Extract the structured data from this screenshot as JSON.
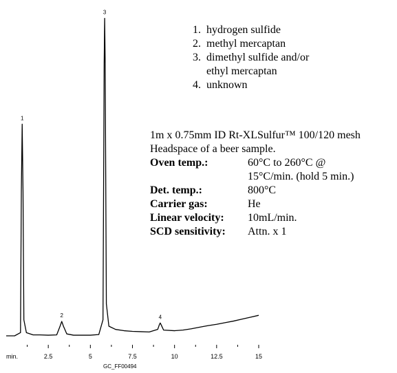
{
  "chart_data": {
    "type": "line",
    "title": "",
    "xlabel": "min.",
    "ylabel": "",
    "xlim": [
      0,
      15
    ],
    "x_ticks": [
      2.5,
      5,
      7.5,
      10,
      12.5,
      15
    ],
    "x_tick_labels": [
      "2.5",
      "5",
      "7.5",
      "10",
      "12.5",
      "15"
    ],
    "grid": false,
    "peaks": [
      {
        "label": "1",
        "x": 0.95,
        "height": 0.66
      },
      {
        "label": "2",
        "x": 3.3,
        "height": 0.045
      },
      {
        "label": "3",
        "x": 5.85,
        "height": 0.99
      },
      {
        "label": "4",
        "x": 9.15,
        "height": 0.04
      }
    ],
    "series": [
      {
        "x": [
          0.0,
          0.5,
          0.85,
          0.9,
          0.95,
          1.0,
          1.05,
          1.2,
          1.6,
          2.0,
          2.5,
          3.0,
          3.2,
          3.3,
          3.4,
          3.6,
          4.0,
          4.5,
          5.0,
          5.5,
          5.75,
          5.82,
          5.85,
          5.88,
          5.95,
          6.1,
          6.5,
          7.0,
          7.5,
          8.0,
          8.5,
          9.0,
          9.1,
          9.15,
          9.2,
          9.35,
          10.0,
          10.5,
          11.0,
          11.5,
          12.0,
          12.5,
          13.0,
          13.5,
          14.0,
          14.5,
          15.0
        ],
        "y": [
          0.0,
          0.0,
          0.01,
          0.45,
          0.66,
          0.45,
          0.05,
          0.01,
          0.003,
          0.003,
          0.002,
          0.003,
          0.03,
          0.045,
          0.03,
          0.006,
          0.002,
          0.002,
          0.002,
          0.004,
          0.05,
          0.85,
          0.99,
          0.85,
          0.1,
          0.03,
          0.02,
          0.016,
          0.014,
          0.013,
          0.012,
          0.02,
          0.035,
          0.04,
          0.035,
          0.018,
          0.016,
          0.018,
          0.022,
          0.027,
          0.032,
          0.036,
          0.041,
          0.046,
          0.052,
          0.058,
          0.064
        ]
      }
    ]
  },
  "peak_list": [
    {
      "num": "1.",
      "name": "hydrogen sulfide"
    },
    {
      "num": "2.",
      "name": "methyl mercaptan"
    },
    {
      "num": "3.",
      "name": "dimethyl sulfide and/or ethyl mercaptan"
    },
    {
      "num": "4.",
      "name": "unknown"
    }
  ],
  "conditions": {
    "column": "1m x 0.75mm ID Rt-XLSulfur™ 100/120 mesh",
    "sample": "Headspace of a beer sample.",
    "rows": [
      {
        "label": "Oven temp.:",
        "value": "60°C to 260°C @",
        "value2": "15°C/min. (hold 5 min.)"
      },
      {
        "label": "Det. temp.:",
        "value": "800°C"
      },
      {
        "label": "Carrier gas:",
        "value": "He"
      },
      {
        "label": "Linear velocity:",
        "value": "10mL/min."
      },
      {
        "label": "SCD sensitivity:",
        "value": "Attn. x  1"
      }
    ]
  },
  "figure_code": "GC_FF00494"
}
